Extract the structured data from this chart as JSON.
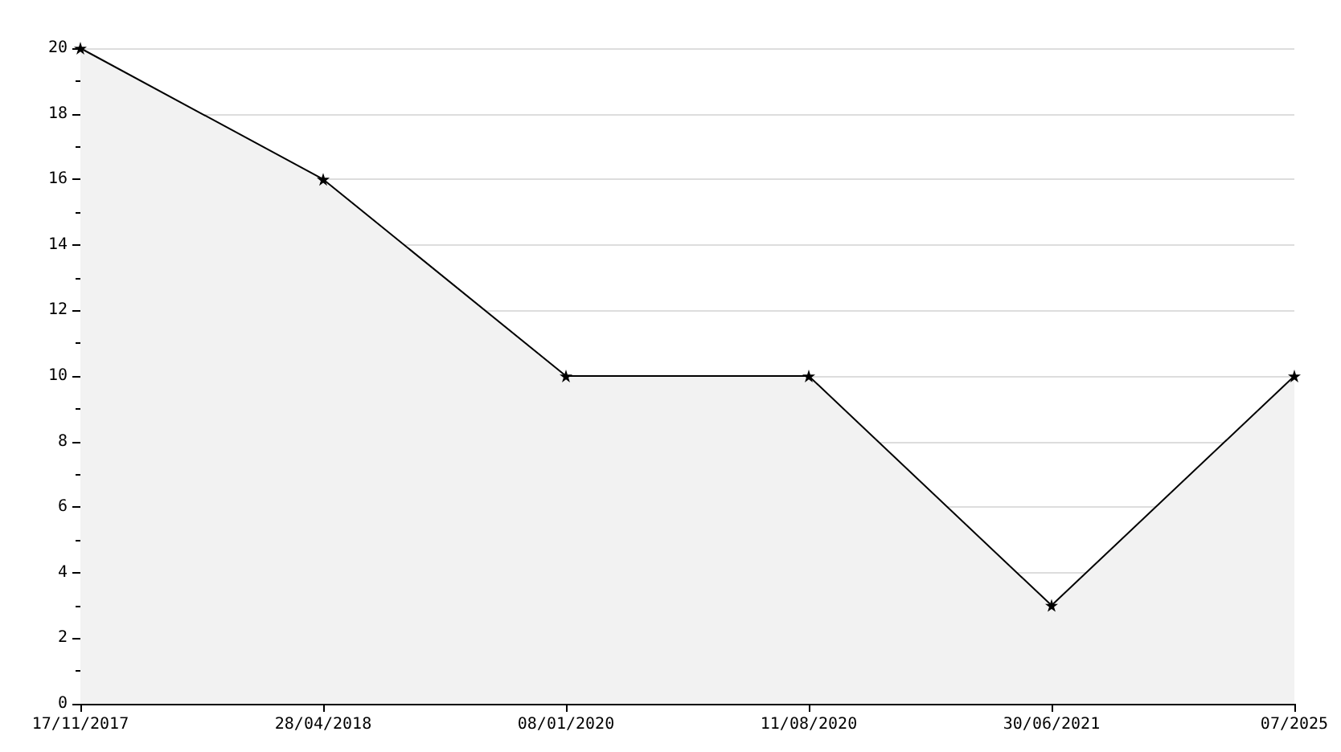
{
  "chart_data": {
    "type": "area",
    "categories": [
      "17/11/2017",
      "28/04/2018",
      "08/01/2020",
      "11/08/2020",
      "30/06/2021",
      "07/2025"
    ],
    "series": [
      {
        "color": "#000000",
        "values": [
          20,
          16,
          10,
          10,
          3,
          10
        ]
      }
    ],
    "ylim": [
      0,
      20
    ],
    "yticks": [
      0,
      2,
      4,
      6,
      8,
      10,
      12,
      14,
      16,
      18,
      20
    ],
    "grid": "y",
    "marker": "star",
    "line_style": "solid"
  }
}
